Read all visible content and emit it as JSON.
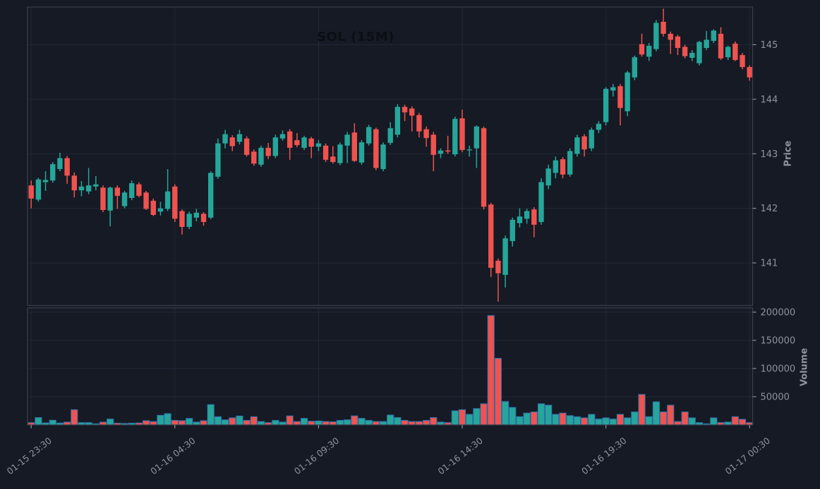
{
  "title": "SOL (15M)",
  "colors": {
    "background": "#151a24",
    "up": "#26a69a",
    "down": "#ef5350",
    "volume_edge": "#2f6fad",
    "grid": "#212836",
    "spine": "#3a3f4c",
    "tick_text": "#8f939d",
    "title_text": "#0b0e15"
  },
  "chart_data": {
    "type": "candlestick",
    "title": "SOL (15M)",
    "symbol": "SOL",
    "interval": "15M",
    "legend_position": "none",
    "grid": true,
    "x_ticks": [
      "01-15 23:30",
      "01-16 04:30",
      "01-16 09:30",
      "01-16 14:30",
      "01-16 19:30",
      "01-17 00:30"
    ],
    "x_tick_indices": [
      0,
      20,
      40,
      60,
      80,
      100
    ],
    "price_axis": {
      "label": "Price",
      "side": "right",
      "ticks": [
        141,
        142,
        143,
        144,
        145
      ],
      "range": [
        140.22,
        145.69
      ]
    },
    "volume_axis": {
      "label": "Volume",
      "side": "right",
      "ticks": [
        50000,
        100000,
        150000,
        200000
      ],
      "range": [
        0,
        207500
      ]
    },
    "candle_columns": [
      "open",
      "high",
      "low",
      "close",
      "volume"
    ],
    "candles": [
      [
        142.42,
        142.51,
        142.0,
        142.18,
        4000
      ],
      [
        142.16,
        142.56,
        142.12,
        142.53,
        13000
      ],
      [
        142.48,
        142.68,
        142.32,
        142.52,
        3500
      ],
      [
        142.51,
        142.85,
        142.47,
        142.81,
        8300
      ],
      [
        142.72,
        143.02,
        142.68,
        142.92,
        3300
      ],
      [
        142.92,
        142.96,
        142.45,
        142.6,
        5000
      ],
      [
        142.6,
        142.66,
        142.2,
        142.33,
        27000
      ],
      [
        142.33,
        142.5,
        142.22,
        142.4,
        4000
      ],
      [
        142.31,
        142.74,
        142.26,
        142.42,
        4000
      ],
      [
        142.4,
        142.59,
        142.33,
        142.44,
        2000
      ],
      [
        142.38,
        142.42,
        141.93,
        141.97,
        5000
      ],
      [
        141.96,
        142.4,
        141.67,
        142.38,
        10400
      ],
      [
        142.38,
        142.42,
        141.99,
        142.23,
        3000
      ],
      [
        142.04,
        142.32,
        142.0,
        142.29,
        2500
      ],
      [
        142.19,
        142.51,
        142.15,
        142.46,
        3000
      ],
      [
        142.44,
        142.48,
        142.2,
        142.23,
        3500
      ],
      [
        142.29,
        142.32,
        141.97,
        141.99,
        7500
      ],
      [
        142.14,
        142.18,
        141.86,
        141.88,
        6000
      ],
      [
        141.94,
        142.12,
        141.87,
        142.0,
        17000
      ],
      [
        141.99,
        142.72,
        141.95,
        142.31,
        20000
      ],
      [
        142.4,
        142.44,
        141.75,
        141.81,
        8000
      ],
      [
        141.95,
        141.98,
        141.52,
        141.66,
        7500
      ],
      [
        141.66,
        141.94,
        141.62,
        141.9,
        11500
      ],
      [
        141.83,
        141.99,
        141.76,
        141.92,
        5000
      ],
      [
        141.9,
        141.93,
        141.68,
        141.75,
        7500
      ],
      [
        141.83,
        142.68,
        141.8,
        142.65,
        36000
      ],
      [
        142.58,
        143.28,
        142.54,
        143.19,
        14500
      ],
      [
        143.19,
        143.44,
        143.1,
        143.36,
        9000
      ],
      [
        143.3,
        143.34,
        143.05,
        143.14,
        12500
      ],
      [
        143.22,
        143.44,
        143.17,
        143.36,
        15800
      ],
      [
        143.28,
        143.32,
        142.95,
        142.98,
        8000
      ],
      [
        143.04,
        143.08,
        142.78,
        142.82,
        14500
      ],
      [
        142.8,
        143.15,
        142.76,
        143.11,
        6000
      ],
      [
        143.11,
        143.2,
        142.9,
        142.96,
        4000
      ],
      [
        142.96,
        143.35,
        142.92,
        143.3,
        8000
      ],
      [
        143.28,
        143.43,
        143.24,
        143.36,
        5000
      ],
      [
        143.41,
        143.45,
        142.89,
        143.11,
        16000
      ],
      [
        143.25,
        143.38,
        143.12,
        143.16,
        6000
      ],
      [
        143.11,
        143.33,
        143.07,
        143.3,
        11600
      ],
      [
        143.28,
        143.31,
        142.92,
        143.13,
        6500
      ],
      [
        143.13,
        143.25,
        143.05,
        143.19,
        7000
      ],
      [
        143.15,
        143.19,
        142.85,
        142.89,
        6000
      ],
      [
        142.95,
        143.14,
        142.82,
        142.85,
        5500
      ],
      [
        142.83,
        143.21,
        142.79,
        143.17,
        8000
      ],
      [
        143.15,
        143.4,
        142.83,
        143.35,
        9000
      ],
      [
        143.39,
        143.56,
        142.85,
        142.87,
        16000
      ],
      [
        142.84,
        143.25,
        142.8,
        143.21,
        11600
      ],
      [
        143.19,
        143.53,
        143.15,
        143.49,
        8000
      ],
      [
        143.45,
        143.48,
        142.7,
        142.74,
        6000
      ],
      [
        142.72,
        143.21,
        142.68,
        143.17,
        6000
      ],
      [
        143.2,
        143.58,
        143.16,
        143.47,
        17500
      ],
      [
        143.35,
        143.91,
        143.3,
        143.86,
        13000
      ],
      [
        143.86,
        143.9,
        143.6,
        143.76,
        8000
      ],
      [
        143.83,
        143.87,
        143.41,
        143.7,
        6000
      ],
      [
        143.71,
        143.75,
        143.3,
        143.41,
        6000
      ],
      [
        143.45,
        143.5,
        143.13,
        143.29,
        8000
      ],
      [
        143.35,
        143.4,
        142.68,
        142.98,
        13000
      ],
      [
        143.0,
        143.1,
        142.92,
        143.06,
        5000
      ],
      [
        143.06,
        143.33,
        143.0,
        143.04,
        4000
      ],
      [
        142.99,
        143.68,
        142.95,
        143.64,
        25000
      ],
      [
        143.65,
        143.81,
        143.03,
        143.07,
        27000
      ],
      [
        143.07,
        143.15,
        142.95,
        143.08,
        18700
      ],
      [
        143.1,
        143.52,
        142.74,
        143.5,
        29000
      ],
      [
        143.47,
        143.5,
        141.98,
        142.03,
        37500
      ],
      [
        142.07,
        142.1,
        140.74,
        140.91,
        194000
      ],
      [
        141.04,
        141.08,
        140.29,
        140.81,
        118000
      ],
      [
        140.78,
        141.5,
        140.55,
        141.45,
        41500
      ],
      [
        141.4,
        141.83,
        141.3,
        141.79,
        31000
      ],
      [
        141.73,
        142.0,
        141.65,
        141.85,
        14600
      ],
      [
        141.81,
        141.99,
        141.72,
        141.95,
        21000
      ],
      [
        141.98,
        142.02,
        141.47,
        141.7,
        23000
      ],
      [
        141.75,
        142.55,
        141.7,
        142.48,
        37500
      ],
      [
        142.42,
        142.8,
        142.35,
        142.73,
        35000
      ],
      [
        142.65,
        142.95,
        142.55,
        142.88,
        18700
      ],
      [
        142.9,
        142.94,
        142.55,
        142.62,
        21000
      ],
      [
        142.62,
        143.1,
        142.58,
        143.05,
        16500
      ],
      [
        143.0,
        143.35,
        142.95,
        143.3,
        14500
      ],
      [
        143.32,
        143.36,
        142.95,
        143.08,
        12500
      ],
      [
        143.1,
        143.48,
        143.05,
        143.44,
        18700
      ],
      [
        143.44,
        143.6,
        143.38,
        143.55,
        10400
      ],
      [
        143.58,
        144.22,
        143.52,
        144.19,
        12500
      ],
      [
        144.16,
        144.28,
        144.05,
        144.22,
        10400
      ],
      [
        144.24,
        144.28,
        143.52,
        143.84,
        18700
      ],
      [
        143.78,
        144.52,
        143.69,
        144.49,
        12500
      ],
      [
        144.4,
        144.8,
        144.35,
        144.77,
        23000
      ],
      [
        145.01,
        145.2,
        144.78,
        144.82,
        54000
      ],
      [
        144.78,
        145.03,
        144.7,
        144.98,
        14600
      ],
      [
        144.92,
        145.45,
        144.88,
        145.4,
        41000
      ],
      [
        145.42,
        145.66,
        145.15,
        145.2,
        23000
      ],
      [
        145.2,
        145.24,
        144.83,
        145.09,
        35000
      ],
      [
        145.15,
        145.18,
        144.81,
        144.94,
        6000
      ],
      [
        144.96,
        145.0,
        144.75,
        144.79,
        23000
      ],
      [
        144.76,
        144.9,
        144.7,
        144.85,
        12500
      ],
      [
        144.66,
        145.07,
        144.62,
        145.05,
        4000
      ],
      [
        144.94,
        145.25,
        144.9,
        145.09,
        2000
      ],
      [
        145.07,
        145.28,
        145.03,
        145.26,
        12500
      ],
      [
        145.2,
        145.32,
        144.72,
        144.75,
        4000
      ],
      [
        144.77,
        144.98,
        144.72,
        144.96,
        5000
      ],
      [
        145.02,
        145.06,
        144.7,
        144.72,
        14600
      ],
      [
        144.81,
        144.85,
        144.55,
        144.59,
        10000
      ],
      [
        144.59,
        144.62,
        144.34,
        144.4,
        4000
      ]
    ]
  }
}
